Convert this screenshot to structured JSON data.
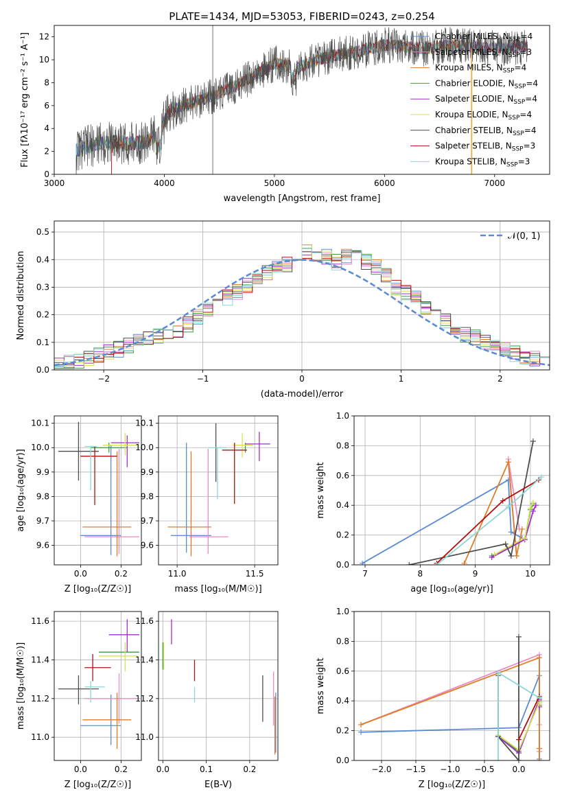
{
  "figure_title": "PLATE=1434, MJD=53053, FIBERID=0243, z=0.254",
  "colors": {
    "Chabrier MILES": "#5b8bd6",
    "Salpeter MILES": "#e98bbf",
    "Kroupa MILES": "#e07b28",
    "Chabrier ELODIE": "#3d9a3d",
    "Salpeter ELODIE": "#a52ccc",
    "Kroupa ELODIE": "#d6e05a",
    "Chabrier STELIB": "#4d4d4d",
    "Salpeter STELIB": "#b01010",
    "Kroupa STELIB": "#8ed6d6"
  },
  "chart_data": [
    {
      "id": "spectrum",
      "type": "line",
      "xlabel": "wavelength [Angstrom, rest frame]",
      "ylabel": "Flux [fλ10⁻¹⁷ erg cm⁻² s⁻¹ A⁻¹]",
      "xlim": [
        3000,
        7500
      ],
      "ylim": [
        0,
        13
      ],
      "xticks": [
        3000,
        4000,
        5000,
        6000,
        7000
      ],
      "yticks": [
        0,
        2,
        4,
        6,
        8,
        10,
        12
      ],
      "grid": false,
      "legend_position": "bottom-right",
      "legend": [
        {
          "label": "Chabrier MILES, N",
          "sub": "SSP",
          "suffix": "=4"
        },
        {
          "label": "Salpeter MILES, N",
          "sub": "SSP",
          "suffix": "=3"
        },
        {
          "label": "Kroupa MILES, N",
          "sub": "SSP",
          "suffix": "=4"
        },
        {
          "label": "Chabrier ELODIE, N",
          "sub": "SSP",
          "suffix": "=4"
        },
        {
          "label": "Salpeter ELODIE, N",
          "sub": "SSP",
          "suffix": "=4"
        },
        {
          "label": "Kroupa ELODIE, N",
          "sub": "SSP",
          "suffix": "=4"
        },
        {
          "label": "Chabrier STELIB, N",
          "sub": "SSP",
          "suffix": "=4"
        },
        {
          "label": "Salpeter STELIB, N",
          "sub": "SSP",
          "suffix": "=3"
        },
        {
          "label": "Kroupa STELIB, N",
          "sub": "SSP",
          "suffix": "=3"
        }
      ],
      "continuum_x": [
        3200,
        3400,
        3550,
        3700,
        3850,
        3950,
        4050,
        4200,
        4400,
        4600,
        4800,
        5000,
        5200,
        5400,
        5600,
        5800,
        6000,
        6200,
        6400,
        6600,
        6800,
        7000,
        7200,
        7450
      ],
      "continuum_y": [
        2.1,
        2.7,
        2.8,
        2.7,
        2.9,
        3.6,
        5.5,
        6.1,
        6.7,
        7.5,
        8.5,
        9.7,
        9.3,
        10.0,
        10.5,
        10.8,
        11.3,
        11.1,
        11.0,
        11.3,
        11.1,
        11.0,
        11.1,
        11.2
      ],
      "series_start": [
        3200,
        3520,
        3520,
        3200,
        3200,
        3200,
        3200,
        3520,
        3200
      ],
      "series_end": [
        7300,
        7300,
        6780,
        7300,
        7300,
        6790,
        7300,
        7300,
        7300
      ]
    },
    {
      "id": "residuals",
      "type": "step",
      "xlabel": "(data-model)/error",
      "ylabel": "Normed distribution",
      "xlim": [
        -2.5,
        2.5
      ],
      "ylim": [
        0,
        0.54
      ],
      "xticks": [
        -2,
        -1,
        0,
        1,
        2
      ],
      "yticks": [
        0.0,
        0.1,
        0.2,
        0.3,
        0.4,
        0.5
      ],
      "grid": true,
      "bins": 50,
      "legend_label": "𝒩(0, 1)",
      "legend_position": "top-right",
      "base_histogram": [
        0.02,
        0.025,
        0.035,
        0.04,
        0.055,
        0.065,
        0.075,
        0.09,
        0.1,
        0.11,
        0.12,
        0.13,
        0.14,
        0.165,
        0.19,
        0.215,
        0.24,
        0.26,
        0.28,
        0.31,
        0.33,
        0.35,
        0.37,
        0.38,
        0.4,
        0.43,
        0.42,
        0.41,
        0.39,
        0.41,
        0.42,
        0.39,
        0.37,
        0.34,
        0.3,
        0.28,
        0.26,
        0.23,
        0.2,
        0.18,
        0.15,
        0.13,
        0.12,
        0.1,
        0.09,
        0.07,
        0.06,
        0.05,
        0.04,
        0.025
      ]
    },
    {
      "id": "age-vs-Z",
      "type": "errorbar",
      "xlabel": "Z [log₁₀(Z/Z☉)]",
      "ylabel": "age  [log₁₀(age/yr)]",
      "xlim": [
        -0.13,
        0.3
      ],
      "ylim": [
        9.52,
        10.13
      ],
      "xticks": [
        0.0,
        0.2
      ],
      "yticks": [
        9.6,
        9.7,
        9.8,
        9.9,
        10.0,
        10.1
      ],
      "grid": true,
      "points": [
        {
          "x": 0.15,
          "y": 9.64,
          "xerr": [
            0.15,
            0.05
          ],
          "yerr": [
            0.08,
            0.37
          ]
        },
        {
          "x": 0.19,
          "y": 9.635,
          "xerr": [
            0.17,
            0.1
          ],
          "yerr": [
            0.07,
            0.36
          ]
        },
        {
          "x": 0.18,
          "y": 9.675,
          "xerr": [
            0.17,
            0.07
          ],
          "yerr": [
            0.12,
            0.31
          ]
        },
        {
          "x": 0.14,
          "y": 10.0,
          "xerr": [
            0.09,
            0.09
          ],
          "yerr": [
            0.02,
            0.02
          ]
        },
        {
          "x": 0.23,
          "y": 10.02,
          "xerr": [
            0.08,
            0.06
          ],
          "yerr": [
            0.1,
            0.03
          ]
        },
        {
          "x": 0.22,
          "y": 10.01,
          "xerr": [
            0.11,
            0.07
          ],
          "yerr": [
            0.04,
            0.05
          ]
        },
        {
          "x": -0.01,
          "y": 9.985,
          "xerr": [
            0.1,
            0.1
          ],
          "yerr": [
            0.12,
            0.12
          ]
        },
        {
          "x": 0.07,
          "y": 9.965,
          "xerr": [
            0.07,
            0.11
          ],
          "yerr": [
            0.2,
            0.04
          ]
        },
        {
          "x": 0.05,
          "y": 10.005,
          "xerr": [
            0.03,
            0.03
          ],
          "yerr": [
            0.18,
            0.0
          ]
        }
      ]
    },
    {
      "id": "age-vs-mass",
      "type": "errorbar",
      "xlabel": "mass [log₁₀(M/M☉)]",
      "ylabel": "",
      "xlim": [
        10.88,
        11.65
      ],
      "ylim": [
        9.52,
        10.13
      ],
      "xticks": [
        11.0,
        11.5
      ],
      "yticks": [
        9.6,
        9.7,
        9.8,
        9.9,
        10.0,
        10.1
      ],
      "grid": true,
      "points": [
        {
          "x": 11.06,
          "y": 9.64,
          "xerr": [
            0.1,
            0.16
          ],
          "yerr": [
            0.07,
            0.38
          ]
        },
        {
          "x": 11.2,
          "y": 9.635,
          "xerr": [
            0.12,
            0.13
          ],
          "yerr": [
            0.07,
            0.36
          ]
        },
        {
          "x": 11.09,
          "y": 9.675,
          "xerr": [
            0.15,
            0.13
          ],
          "yerr": [
            0.12,
            0.31
          ]
        },
        {
          "x": 11.44,
          "y": 10.0,
          "xerr": [
            0.0,
            0.0
          ],
          "yerr": [
            0.02,
            0.02
          ]
        },
        {
          "x": 11.53,
          "y": 10.015,
          "xerr": [
            0.09,
            0.07
          ],
          "yerr": [
            0.07,
            0.05
          ]
        },
        {
          "x": 11.42,
          "y": 10.01,
          "xerr": [
            0.06,
            0.07
          ],
          "yerr": [
            0.05,
            0.05
          ]
        },
        {
          "x": 11.25,
          "y": 9.99,
          "xerr": [
            0.0,
            0.0
          ],
          "yerr": [
            0.13,
            0.11
          ]
        },
        {
          "x": 11.37,
          "y": 9.99,
          "xerr": [
            0.08,
            0.08
          ],
          "yerr": [
            0.22,
            0.03
          ]
        },
        {
          "x": 11.26,
          "y": 10.0,
          "xerr": [
            0.06,
            0.06
          ],
          "yerr": [
            0.21,
            0.0
          ]
        }
      ]
    },
    {
      "id": "weights-vs-age",
      "type": "line",
      "xlabel": "age  [log₁₀(age/yr)]",
      "ylabel": "mass weight",
      "xlim": [
        6.8,
        10.35
      ],
      "ylim": [
        0,
        1
      ],
      "xticks": [
        7,
        8,
        9,
        10
      ],
      "yticks": [
        0.0,
        0.2,
        0.4,
        0.6,
        0.8,
        1.0
      ],
      "grid": true,
      "series": [
        {
          "x": [
            9.85,
            9.65,
            9.6,
            6.95
          ],
          "y": [
            0.18,
            0.22,
            0.57,
            0.01
          ]
        },
        {
          "x": [
            9.75,
            9.6,
            9.8
          ],
          "y": [
            0.06,
            0.71,
            0.24
          ]
        },
        {
          "x": [
            8.8,
            9.6,
            9.75,
            9.85
          ],
          "y": [
            0.01,
            0.69,
            0.06,
            0.24
          ]
        },
        {
          "x": [
            9.3,
            9.9,
            10.0,
            10.05
          ],
          "y": [
            0.06,
            0.17,
            0.37,
            0.41
          ]
        },
        {
          "x": [
            9.3,
            9.9,
            10.05,
            10.1
          ],
          "y": [
            0.05,
            0.17,
            0.36,
            0.4
          ]
        },
        {
          "x": [
            9.35,
            9.9,
            10.0,
            10.05
          ],
          "y": [
            0.07,
            0.18,
            0.38,
            0.42
          ]
        },
        {
          "x": [
            7.8,
            9.55,
            9.65,
            10.05
          ],
          "y": [
            0.0,
            0.14,
            0.06,
            0.83
          ]
        },
        {
          "x": [
            8.3,
            9.5,
            10.15
          ],
          "y": [
            0.01,
            0.43,
            0.57
          ]
        },
        {
          "x": [
            8.3,
            9.6,
            10.2
          ],
          "y": [
            0.0,
            0.39,
            0.59
          ]
        }
      ]
    },
    {
      "id": "mass-vs-Z",
      "type": "errorbar",
      "xlabel": "Z [log₁₀(Z/Z☉)]",
      "ylabel": "mass [log₁₀(M/M☉)]",
      "xlim": [
        -0.13,
        0.3
      ],
      "ylim": [
        10.88,
        11.65
      ],
      "xticks": [
        0.0,
        0.2
      ],
      "yticks": [
        11.0,
        11.2,
        11.4,
        11.6
      ],
      "grid": true,
      "points": [
        {
          "x": 0.15,
          "y": 11.06,
          "xerr": [
            0.15,
            0.05
          ],
          "yerr": [
            0.1,
            0.16
          ]
        },
        {
          "x": 0.19,
          "y": 11.2,
          "xerr": [
            0.17,
            0.09
          ],
          "yerr": [
            0.13,
            0.13
          ]
        },
        {
          "x": 0.18,
          "y": 11.09,
          "xerr": [
            0.17,
            0.07
          ],
          "yerr": [
            0.15,
            0.14
          ]
        },
        {
          "x": 0.23,
          "y": 11.44,
          "xerr": [
            0.14,
            0.06
          ],
          "yerr": [
            0.0,
            0.0
          ]
        },
        {
          "x": 0.23,
          "y": 11.53,
          "xerr": [
            0.09,
            0.06
          ],
          "yerr": [
            0.09,
            0.08
          ]
        },
        {
          "x": 0.22,
          "y": 11.42,
          "xerr": [
            0.13,
            0.06
          ],
          "yerr": [
            0.08,
            0.07
          ]
        },
        {
          "x": -0.01,
          "y": 11.25,
          "xerr": [
            0.1,
            0.1
          ],
          "yerr": [
            0.08,
            0.07
          ]
        },
        {
          "x": 0.06,
          "y": 11.36,
          "xerr": [
            0.04,
            0.09
          ],
          "yerr": [
            0.07,
            0.07
          ]
        },
        {
          "x": 0.05,
          "y": 11.26,
          "xerr": [
            0.03,
            0.07
          ],
          "yerr": [
            0.08,
            0.03
          ]
        }
      ]
    },
    {
      "id": "mass-vs-EBV",
      "type": "errorbar",
      "xlabel": "E(B-V)",
      "ylabel": "",
      "xlim": [
        -0.01,
        0.265
      ],
      "ylim": [
        10.88,
        11.65
      ],
      "xticks": [
        0.0,
        0.1,
        0.2
      ],
      "yticks": [
        11.0,
        11.2,
        11.4,
        11.6
      ],
      "grid": true,
      "points": [
        {
          "x": 0.26,
          "y": 11.06,
          "xerr": [
            0.0,
            0.0
          ],
          "yerr": [
            0.14,
            0.17
          ]
        },
        {
          "x": 0.255,
          "y": 11.2,
          "xerr": [
            0.0,
            0.0
          ],
          "yerr": [
            0.14,
            0.14
          ]
        },
        {
          "x": 0.258,
          "y": 11.09,
          "xerr": [
            0.0,
            0.0
          ],
          "yerr": [
            0.18,
            0.12
          ]
        },
        {
          "x": 0.0,
          "y": 11.42,
          "xerr": [
            0.0,
            0.0
          ],
          "yerr": [
            0.07,
            0.07
          ]
        },
        {
          "x": 0.02,
          "y": 11.53,
          "xerr": [
            0.0,
            0.0
          ],
          "yerr": [
            0.05,
            0.08
          ]
        },
        {
          "x": 0.002,
          "y": 11.42,
          "xerr": [
            0.0,
            0.0
          ],
          "yerr": [
            0.07,
            0.07
          ]
        },
        {
          "x": 0.23,
          "y": 11.2,
          "xerr": [
            0.0,
            0.0
          ],
          "yerr": [
            0.12,
            0.12
          ]
        },
        {
          "x": 0.073,
          "y": 11.33,
          "xerr": [
            0.0,
            0.0
          ],
          "yerr": [
            0.04,
            0.07
          ]
        },
        {
          "x": 0.073,
          "y": 11.22,
          "xerr": [
            0.0,
            0.0
          ],
          "yerr": [
            0.04,
            0.04
          ]
        }
      ]
    },
    {
      "id": "weights-vs-Z",
      "type": "line",
      "xlabel": "Z [log₁₀(Z/Z☉)]",
      "ylabel": "mass weight",
      "xlim": [
        -2.4,
        0.45
      ],
      "ylim": [
        0,
        1
      ],
      "xticks": [
        -2.0,
        -1.5,
        -1.0,
        -0.5,
        0.0
      ],
      "yticks": [
        0.0,
        0.2,
        0.4,
        0.6,
        0.8,
        1.0
      ],
      "grid": true,
      "series": [
        {
          "x": [
            -2.3,
            0.0,
            0.3,
            0.3
          ],
          "y": [
            0.19,
            0.22,
            0.57,
            0.01
          ]
        },
        {
          "x": [
            -2.3,
            0.3,
            0.3,
            0.3
          ],
          "y": [
            0.24,
            0.71,
            0.06,
            0.24
          ]
        },
        {
          "x": [
            -2.3,
            0.3,
            0.3,
            0.3
          ],
          "y": [
            0.24,
            0.69,
            0.0,
            0.08
          ]
        },
        {
          "x": [
            -0.3,
            0.0,
            0.3,
            0.3
          ],
          "y": [
            0.17,
            0.06,
            0.4,
            0.37
          ]
        },
        {
          "x": [
            -0.3,
            0.0,
            0.3,
            0.3
          ],
          "y": [
            0.16,
            0.05,
            0.41,
            0.36
          ]
        },
        {
          "x": [
            -0.3,
            0.0,
            0.3,
            0.3
          ],
          "y": [
            0.17,
            0.07,
            0.39,
            0.38
          ]
        },
        {
          "x": [
            -0.3,
            -0.3,
            0.0,
            0.0
          ],
          "y": [
            0.57,
            0.16,
            0.0,
            0.83
          ]
        },
        {
          "x": [
            0.0,
            0.3,
            0.3
          ],
          "y": [
            0.14,
            0.43,
            0.42
          ]
        },
        {
          "x": [
            -0.3,
            -0.3,
            0.3
          ],
          "y": [
            0.0,
            0.59,
            0.42
          ]
        }
      ]
    }
  ]
}
